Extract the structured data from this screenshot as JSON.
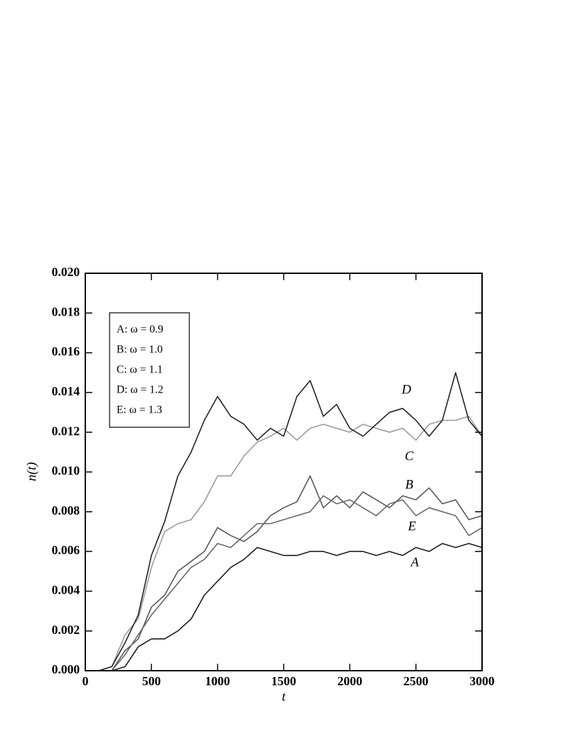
{
  "chart_data": {
    "type": "line",
    "xlabel": "t",
    "ylabel": "n(t)",
    "x": [
      0,
      100,
      200,
      300,
      400,
      500,
      600,
      700,
      800,
      900,
      1000,
      1100,
      1200,
      1300,
      1400,
      1500,
      1600,
      1700,
      1800,
      1900,
      2000,
      2100,
      2200,
      2300,
      2400,
      2500,
      2600,
      2700,
      2800,
      2900,
      3000
    ],
    "series": [
      {
        "name": "A: ω = 0.9",
        "label": "A",
        "color": "#1a1a1a",
        "values": [
          0,
          0,
          0,
          0.0002,
          0.0012,
          0.0016,
          0.0016,
          0.002,
          0.0026,
          0.0038,
          0.0045,
          0.0052,
          0.0056,
          0.0062,
          0.006,
          0.0058,
          0.0058,
          0.006,
          0.006,
          0.0058,
          0.006,
          0.006,
          0.0058,
          0.006,
          0.0058,
          0.0062,
          0.006,
          0.0064,
          0.0062,
          0.0064,
          0.0062
        ]
      },
      {
        "name": "B: ω = 1.0",
        "label": "B",
        "color": "#555555",
        "values": [
          0,
          0,
          0,
          0.001,
          0.0016,
          0.0032,
          0.0038,
          0.005,
          0.0055,
          0.006,
          0.0072,
          0.0068,
          0.0065,
          0.007,
          0.0078,
          0.0082,
          0.0085,
          0.0098,
          0.0082,
          0.0088,
          0.0082,
          0.009,
          0.0086,
          0.0082,
          0.0088,
          0.0086,
          0.0092,
          0.0084,
          0.0086,
          0.0076,
          0.0078
        ]
      },
      {
        "name": "C: ω = 1.1",
        "label": "C",
        "color": "#9a9a9a",
        "values": [
          0,
          0,
          0.0002,
          0.0018,
          0.0026,
          0.0052,
          0.007,
          0.0074,
          0.0076,
          0.0085,
          0.0098,
          0.0098,
          0.0108,
          0.0115,
          0.0118,
          0.0122,
          0.0116,
          0.0122,
          0.0124,
          0.0122,
          0.012,
          0.0124,
          0.0122,
          0.012,
          0.0122,
          0.0116,
          0.0124,
          0.0126,
          0.0126,
          0.0128,
          0.0118
        ]
      },
      {
        "name": "D: ω = 1.2",
        "label": "D",
        "color": "#222222",
        "values": [
          0,
          0,
          0.0002,
          0.0014,
          0.0028,
          0.0058,
          0.0075,
          0.0098,
          0.011,
          0.0126,
          0.0138,
          0.0128,
          0.0124,
          0.0116,
          0.0122,
          0.0118,
          0.0138,
          0.0146,
          0.0128,
          0.0134,
          0.0122,
          0.0118,
          0.0124,
          0.013,
          0.0132,
          0.0126,
          0.0118,
          0.0126,
          0.015,
          0.0126,
          0.0118
        ]
      },
      {
        "name": "E: ω = 1.3",
        "label": "E",
        "color": "#666666",
        "values": [
          0,
          0,
          0,
          0.0008,
          0.0018,
          0.0028,
          0.0036,
          0.0044,
          0.0052,
          0.0056,
          0.0064,
          0.0062,
          0.0068,
          0.0074,
          0.0074,
          0.0076,
          0.0078,
          0.008,
          0.0088,
          0.0084,
          0.0086,
          0.0082,
          0.0078,
          0.0084,
          0.0086,
          0.0078,
          0.0082,
          0.008,
          0.0078,
          0.0068,
          0.0072
        ]
      }
    ],
    "xlim": [
      0,
      3000
    ],
    "xticks": [
      0,
      500,
      1000,
      1500,
      2000,
      2500,
      3000
    ],
    "ylim": [
      0,
      0.02
    ],
    "yticks": [
      {
        "value": 0,
        "label": "0.000"
      },
      {
        "value": 0.002,
        "label": "0.002"
      },
      {
        "value": 0.004,
        "label": "0.004"
      },
      {
        "value": 0.006,
        "label": "0.006"
      },
      {
        "value": 0.008,
        "label": "0.008"
      },
      {
        "value": 0.01,
        "label": "0.010"
      },
      {
        "value": 0.012,
        "label": "0.012"
      },
      {
        "value": 0.014,
        "label": "0.014"
      },
      {
        "value": 0.016,
        "label": "0.016"
      },
      {
        "value": 0.018,
        "label": "0.018"
      },
      {
        "value": 0.02,
        "label": "0.020"
      }
    ],
    "legend": "upper-left"
  }
}
